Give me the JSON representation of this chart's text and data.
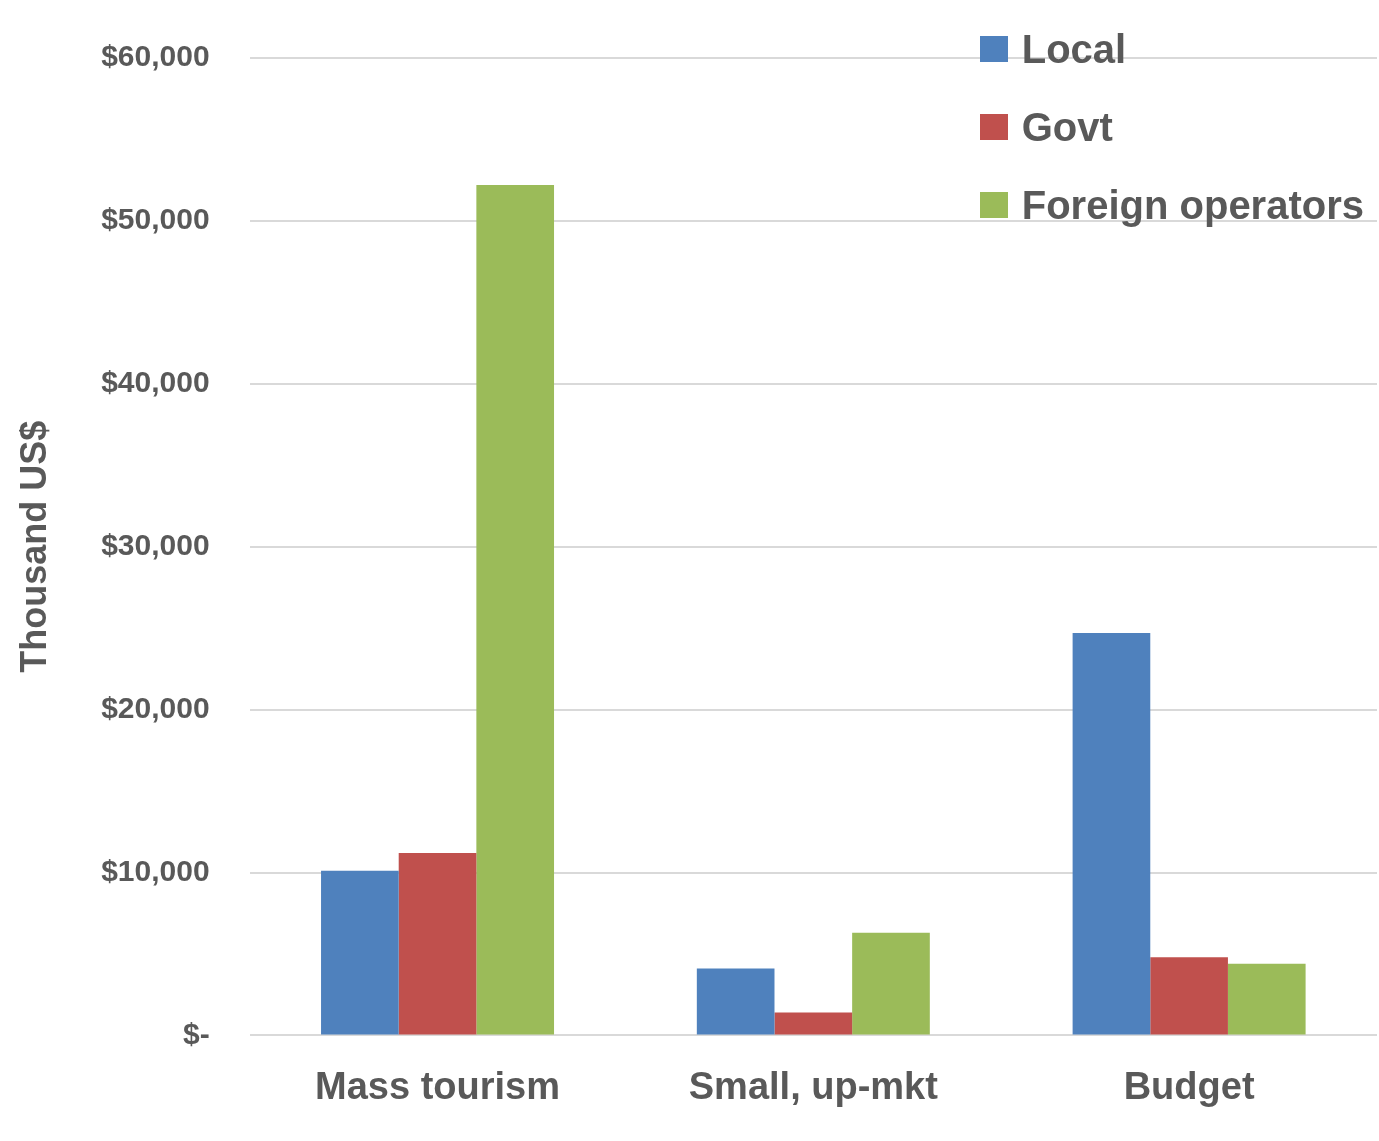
{
  "chart_data": {
    "type": "bar",
    "ylabel": "Thousand US$",
    "categories": [
      "Mass tourism",
      "Small, up-mkt",
      "Budget"
    ],
    "series": [
      {
        "name": "Local",
        "color": "#4f81bd",
        "values": [
          10100,
          4100,
          24700
        ]
      },
      {
        "name": "Govt",
        "color": "#c0504d",
        "values": [
          11200,
          1400,
          4800
        ]
      },
      {
        "name": "Foreign operators",
        "color": "#9bbb59",
        "values": [
          52200,
          6300,
          4400
        ]
      }
    ],
    "ylim": [
      0,
      60000
    ],
    "yticks": [
      {
        "value": 0,
        "label": "$-"
      },
      {
        "value": 10000,
        "label": "$10,000"
      },
      {
        "value": 20000,
        "label": "$20,000"
      },
      {
        "value": 30000,
        "label": "$30,000"
      },
      {
        "value": 40000,
        "label": "$40,000"
      },
      {
        "value": 50000,
        "label": "$50,000"
      },
      {
        "value": 60000,
        "label": "$60,000"
      }
    ],
    "grid": "y",
    "legend": "top right"
  }
}
